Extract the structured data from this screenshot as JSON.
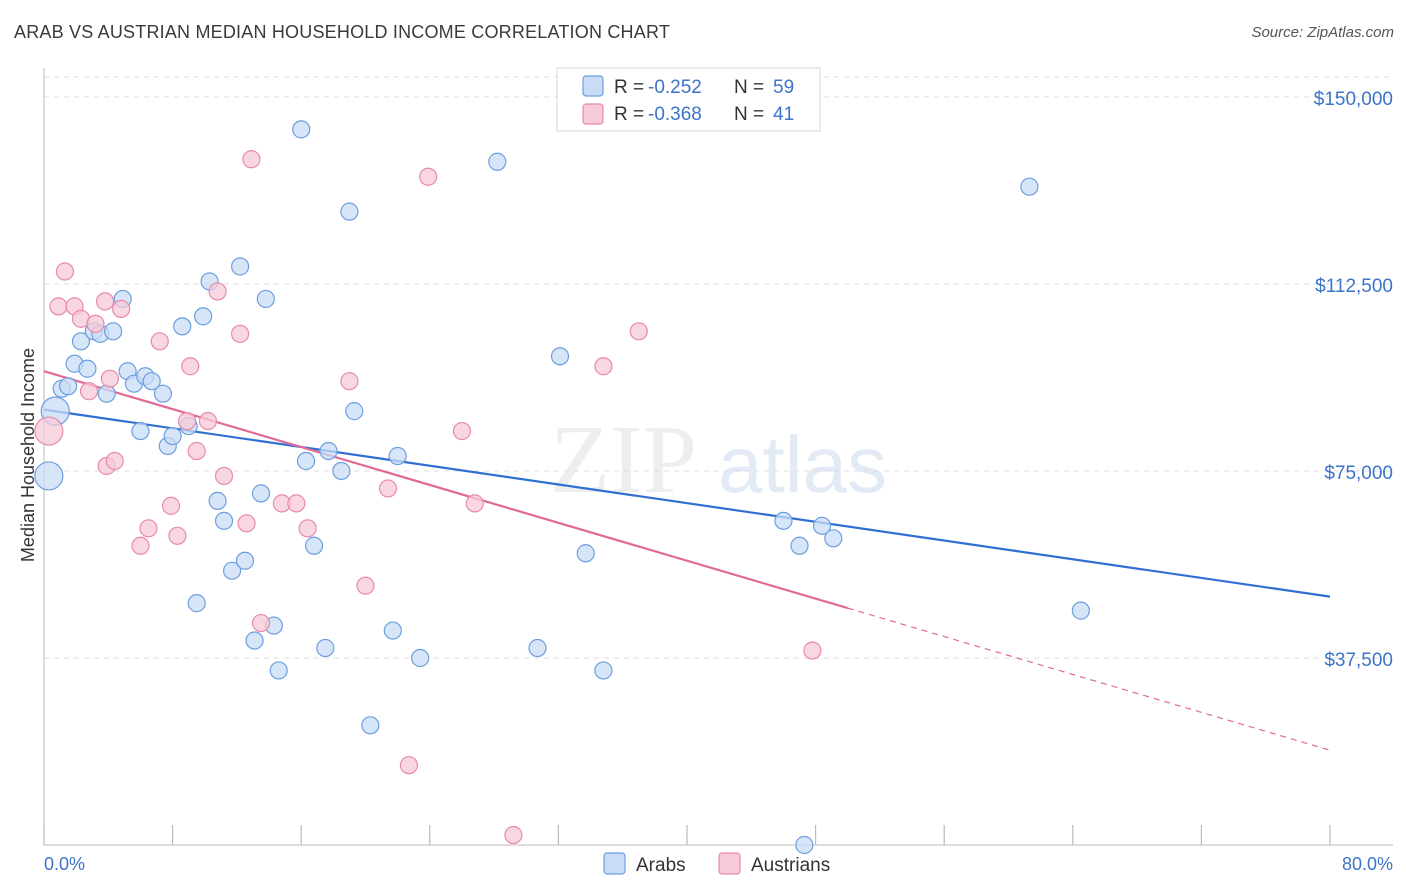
{
  "title": "ARAB VS AUSTRIAN MEDIAN HOUSEHOLD INCOME CORRELATION CHART",
  "source": "Source: ZipAtlas.com",
  "chart_data": {
    "type": "scatter",
    "xlabel": "",
    "ylabel": "Median Household Income",
    "xlim": [
      0,
      80
    ],
    "ylim": [
      0,
      155000
    ],
    "x_tick_labels": [
      "0.0%",
      "80.0%"
    ],
    "y_ticks": [
      37500,
      75000,
      112500,
      150000
    ],
    "y_tick_labels": [
      "$37,500",
      "$75,000",
      "$112,500",
      "$150,000"
    ],
    "grid": true,
    "watermark": {
      "left": "ZIP",
      "right": "atlas"
    },
    "legend": [
      {
        "series": "Arabs",
        "r_label": "R =",
        "r_value": "-0.252",
        "n_label": "N =",
        "n_value": "59"
      },
      {
        "series": "Austrians",
        "r_label": "R =",
        "r_value": "-0.368",
        "n_label": "N =",
        "n_value": "41"
      }
    ],
    "series": [
      {
        "name": "Arabs",
        "color": "#6d9ee0",
        "fill": "#c9dcf5",
        "trend": {
          "x": [
            0,
            80
          ],
          "y": [
            87300,
            49800
          ]
        },
        "points": [
          [
            0.3,
            74000,
            "large"
          ],
          [
            0.7,
            87000,
            "large"
          ],
          [
            1.1,
            91500
          ],
          [
            1.5,
            92000
          ],
          [
            1.9,
            96500
          ],
          [
            2.3,
            101000
          ],
          [
            2.7,
            95500
          ],
          [
            3.1,
            103000
          ],
          [
            3.5,
            102500
          ],
          [
            3.9,
            90500
          ],
          [
            4.3,
            103000
          ],
          [
            4.9,
            109500
          ],
          [
            5.2,
            95000
          ],
          [
            5.6,
            92500
          ],
          [
            6.0,
            83000
          ],
          [
            6.3,
            94000
          ],
          [
            6.7,
            93000
          ],
          [
            7.4,
            90500
          ],
          [
            7.7,
            80000
          ],
          [
            8.0,
            82000
          ],
          [
            8.6,
            104000
          ],
          [
            9.0,
            84000
          ],
          [
            9.5,
            48500
          ],
          [
            9.9,
            106000
          ],
          [
            10.3,
            113000
          ],
          [
            10.8,
            69000
          ],
          [
            11.2,
            65000
          ],
          [
            11.7,
            55000
          ],
          [
            12.2,
            116000
          ],
          [
            12.5,
            57000
          ],
          [
            13.1,
            41000
          ],
          [
            13.5,
            70500
          ],
          [
            13.8,
            109500
          ],
          [
            14.3,
            44000
          ],
          [
            14.6,
            35000
          ],
          [
            16.0,
            143500
          ],
          [
            16.3,
            77000
          ],
          [
            16.8,
            60000
          ],
          [
            17.5,
            39500
          ],
          [
            17.7,
            79000
          ],
          [
            18.5,
            75000
          ],
          [
            19.0,
            127000
          ],
          [
            19.3,
            87000
          ],
          [
            20.3,
            24000
          ],
          [
            21.7,
            43000
          ],
          [
            22.0,
            78000
          ],
          [
            23.4,
            37500
          ],
          [
            28.2,
            137000
          ],
          [
            30.7,
            39500
          ],
          [
            32.1,
            98000
          ],
          [
            33.7,
            58500
          ],
          [
            34.8,
            35000
          ],
          [
            46.0,
            65000
          ],
          [
            47.0,
            60000
          ],
          [
            47.3,
            0
          ],
          [
            48.4,
            64000
          ],
          [
            49.1,
            61500
          ],
          [
            61.3,
            132000
          ],
          [
            64.5,
            47000
          ]
        ]
      },
      {
        "name": "Austrians",
        "color": "#e88aa8",
        "fill": "#f7cad8",
        "trend": {
          "x": [
            0,
            50
          ],
          "y": [
            95000,
            47500
          ]
        },
        "trend_dashed": {
          "x": [
            50,
            80
          ],
          "y": [
            47500,
            19000
          ]
        },
        "points": [
          [
            0.3,
            83000,
            "large"
          ],
          [
            0.9,
            108000
          ],
          [
            1.3,
            115000
          ],
          [
            1.9,
            108000
          ],
          [
            2.3,
            105500
          ],
          [
            2.8,
            91000
          ],
          [
            3.2,
            104500
          ],
          [
            3.8,
            109000
          ],
          [
            3.9,
            76000
          ],
          [
            4.1,
            93500
          ],
          [
            4.4,
            77000
          ],
          [
            4.8,
            107500
          ],
          [
            6.0,
            60000
          ],
          [
            6.5,
            63500
          ],
          [
            7.2,
            101000
          ],
          [
            7.9,
            68000
          ],
          [
            8.3,
            62000
          ],
          [
            8.9,
            85000
          ],
          [
            9.1,
            96000
          ],
          [
            9.5,
            79000
          ],
          [
            10.2,
            85000
          ],
          [
            10.8,
            111000
          ],
          [
            11.2,
            74000
          ],
          [
            12.2,
            102500
          ],
          [
            12.6,
            64500
          ],
          [
            12.9,
            137500
          ],
          [
            13.5,
            44500
          ],
          [
            14.8,
            68500
          ],
          [
            15.7,
            68500
          ],
          [
            16.4,
            63500
          ],
          [
            19.0,
            93000
          ],
          [
            20.0,
            52000
          ],
          [
            21.4,
            71500
          ],
          [
            22.7,
            16000
          ],
          [
            23.9,
            134000
          ],
          [
            26.0,
            83000
          ],
          [
            26.8,
            68500
          ],
          [
            29.2,
            2000
          ],
          [
            34.8,
            96000
          ],
          [
            37.0,
            103000
          ],
          [
            47.8,
            39000
          ]
        ]
      }
    ]
  }
}
